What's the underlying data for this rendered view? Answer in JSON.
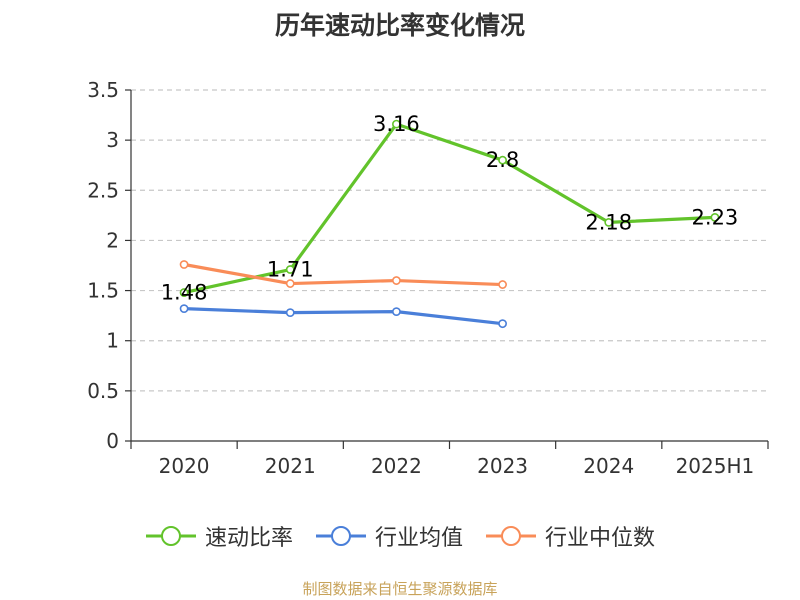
{
  "chart_data": {
    "type": "line",
    "title": "历年速动比率变化情况",
    "categories": [
      "2020",
      "2021",
      "2022",
      "2023",
      "2024",
      "2025H1"
    ],
    "y_ticks": [
      "0",
      "0.5",
      "1",
      "1.5",
      "2",
      "2.5",
      "3",
      "3.5"
    ],
    "ylim": [
      0,
      3.5
    ],
    "grid": true,
    "legend_position": "bottom",
    "series": [
      {
        "name": "速动比率",
        "color": "#62c32b",
        "values": [
          1.48,
          1.71,
          3.16,
          2.8,
          2.18,
          2.23
        ],
        "show_labels": true,
        "labels": [
          "1.48",
          "1.71",
          "3.16",
          "2.8",
          "2.18",
          "2.23"
        ]
      },
      {
        "name": "行业均值",
        "color": "#4a7fd9",
        "values": [
          1.32,
          1.28,
          1.29,
          1.17,
          null,
          null
        ],
        "show_labels": false
      },
      {
        "name": "行业中位数",
        "color": "#f98c58",
        "values": [
          1.76,
          1.57,
          1.6,
          1.56,
          null,
          null
        ],
        "show_labels": false
      }
    ]
  },
  "source_text": "制图数据来自恒生聚源数据库"
}
